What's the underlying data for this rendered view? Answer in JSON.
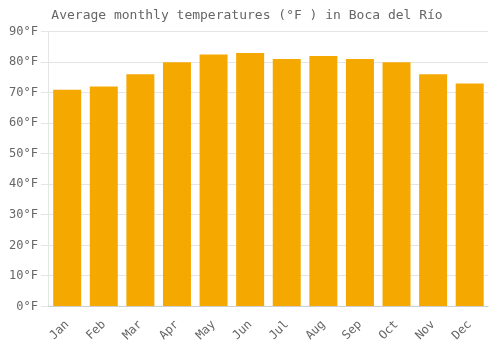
{
  "chart_data": {
    "type": "bar",
    "title": "Average monthly temperatures (°F ) in Boca del Río",
    "categories": [
      "Jan",
      "Feb",
      "Mar",
      "Apr",
      "May",
      "Jun",
      "Jul",
      "Aug",
      "Sep",
      "Oct",
      "Nov",
      "Dec"
    ],
    "values": [
      71,
      72,
      76,
      80,
      82.5,
      83,
      81,
      82,
      81,
      80,
      76,
      73
    ],
    "color": "#F5A800",
    "ylim": [
      0,
      90
    ],
    "yticks": [
      {
        "value": 0,
        "label": "0°F"
      },
      {
        "value": 10,
        "label": "10°F"
      },
      {
        "value": 20,
        "label": "20°F"
      },
      {
        "value": 30,
        "label": "30°F"
      },
      {
        "value": 40,
        "label": "40°F"
      },
      {
        "value": 50,
        "label": "50°F"
      },
      {
        "value": 60,
        "label": "60°F"
      },
      {
        "value": 70,
        "label": "70°F"
      },
      {
        "value": 80,
        "label": "80°F"
      },
      {
        "value": 90,
        "label": "90°F"
      }
    ],
    "grid": true
  }
}
